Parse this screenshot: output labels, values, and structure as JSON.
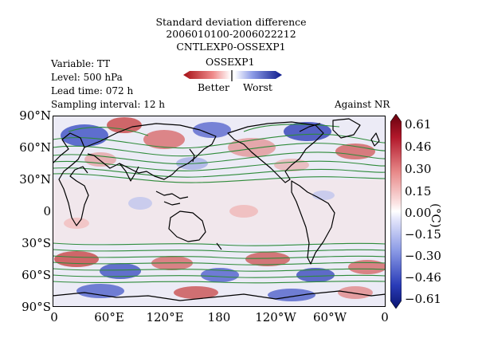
{
  "header": {
    "title_lines": [
      "Standard deviation difference",
      "2006010100-2006022212",
      "CNTLEXP0-OSSEXP1"
    ],
    "legend_title": "OSSEXP1",
    "legend_better": "Better",
    "legend_worst": "Worst"
  },
  "meta": {
    "variable": "Variable: TT",
    "level": "Level: 500 hPa",
    "lead_time": "Lead time: 072 h",
    "sampling": "Sampling interval: 12 h",
    "against": "Against NR"
  },
  "axes": {
    "lat_ticks": [
      "90°N",
      "60°N",
      "30°N",
      "0",
      "30°S",
      "60°S",
      "90°S"
    ],
    "lon_ticks": [
      "0",
      "60°E",
      "120°E",
      "180",
      "120°W",
      "60°W",
      "0"
    ]
  },
  "colorbar": {
    "ticks": [
      "0.61",
      "0.46",
      "0.30",
      "0.15",
      "0.00",
      "−0.15",
      "−0.30",
      "−0.46",
      "−0.61"
    ],
    "unit": "(°C)",
    "colors": {
      "strong_positive": "#b2182b",
      "weak_positive": "#f4c6c6",
      "neutral": "#f2f2f8",
      "weak_negative": "#c7cdf0",
      "strong_negative": "#1b2a9c"
    }
  }
}
